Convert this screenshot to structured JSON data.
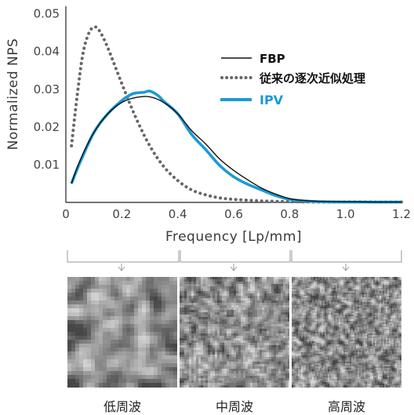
{
  "chart_data": {
    "type": "line",
    "title": "",
    "xlabel": "Frequency [Lp/mm]",
    "ylabel": "Normalized NPS",
    "xlim": [
      0,
      1.2
    ],
    "ylim": [
      0,
      0.052
    ],
    "x_ticks": [
      "0",
      "0.2",
      "0.4",
      "0.6",
      "0.8",
      "1.0",
      "1.2"
    ],
    "y_ticks": [
      "0.01",
      "0.02",
      "0.03",
      "0.04",
      "0.05"
    ],
    "grid": false,
    "legend_position": "top-right",
    "series": [
      {
        "name": "FBP",
        "style": "solid",
        "color": "#111111",
        "x": [
          0.02,
          0.05,
          0.1,
          0.15,
          0.2,
          0.25,
          0.3,
          0.35,
          0.4,
          0.45,
          0.5,
          0.55,
          0.6,
          0.65,
          0.7,
          0.75,
          0.8,
          0.85,
          0.9,
          1.0,
          1.1,
          1.2
        ],
        "y": [
          0.005,
          0.011,
          0.0185,
          0.0235,
          0.0265,
          0.0278,
          0.028,
          0.0265,
          0.0235,
          0.019,
          0.0155,
          0.0115,
          0.0085,
          0.006,
          0.0038,
          0.0022,
          0.001,
          0.0005,
          0.0003,
          0.0002,
          0.0001,
          0.0001
        ]
      },
      {
        "name": "従来の逐次近似処理",
        "style": "dotted",
        "color": "#666666",
        "x": [
          0.02,
          0.04,
          0.06,
          0.08,
          0.1,
          0.12,
          0.15,
          0.2,
          0.25,
          0.3,
          0.35,
          0.4,
          0.45,
          0.5,
          0.55,
          0.6,
          0.7,
          0.8,
          0.9,
          1.0,
          1.2
        ],
        "y": [
          0.015,
          0.028,
          0.039,
          0.0445,
          0.0465,
          0.0455,
          0.041,
          0.0315,
          0.0225,
          0.015,
          0.0095,
          0.0058,
          0.0033,
          0.002,
          0.0012,
          0.0008,
          0.0004,
          0.0002,
          0.0001,
          0.0001,
          0.0001
        ]
      },
      {
        "name": "IPV",
        "style": "solid-thick",
        "color": "#1b9ad6",
        "x": [
          0.02,
          0.05,
          0.1,
          0.15,
          0.2,
          0.23,
          0.25,
          0.28,
          0.3,
          0.33,
          0.35,
          0.4,
          0.45,
          0.5,
          0.55,
          0.6,
          0.65,
          0.7,
          0.75,
          0.8,
          0.85,
          0.9,
          1.0,
          1.2
        ],
        "y": [
          0.005,
          0.0105,
          0.0185,
          0.0235,
          0.027,
          0.0285,
          0.029,
          0.0292,
          0.0295,
          0.0283,
          0.0268,
          0.0235,
          0.018,
          0.014,
          0.0098,
          0.0068,
          0.0048,
          0.0033,
          0.0018,
          0.0008,
          0.0004,
          0.0002,
          0.0001,
          0.0001
        ]
      }
    ]
  },
  "panels": [
    {
      "label": "低周波",
      "grain": 5
    },
    {
      "label": "中周波",
      "grain": 3
    },
    {
      "label": "高周波",
      "grain": 2
    }
  ]
}
